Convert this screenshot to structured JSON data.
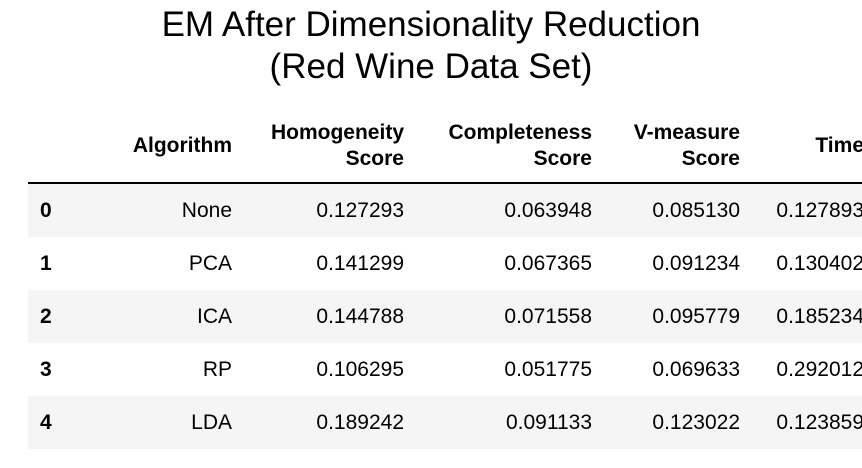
{
  "title": {
    "line1": "EM After Dimensionality Reduction",
    "line2": "(Red Wine Data Set)"
  },
  "table": {
    "columns": [
      {
        "lines": [
          "Algorithm"
        ]
      },
      {
        "lines": [
          "Homogeneity",
          "Score"
        ]
      },
      {
        "lines": [
          "Completeness",
          "Score"
        ]
      },
      {
        "lines": [
          "V-measure",
          "Score"
        ]
      },
      {
        "lines": [
          "Time"
        ]
      }
    ],
    "rows": [
      {
        "index": "0",
        "cells": [
          "None",
          "0.127293",
          "0.063948",
          "0.085130",
          "0.127893"
        ]
      },
      {
        "index": "1",
        "cells": [
          "PCA",
          "0.141299",
          "0.067365",
          "0.091234",
          "0.130402"
        ]
      },
      {
        "index": "2",
        "cells": [
          "ICA",
          "0.144788",
          "0.071558",
          "0.095779",
          "0.185234"
        ]
      },
      {
        "index": "3",
        "cells": [
          "RP",
          "0.106295",
          "0.051775",
          "0.069633",
          "0.292012"
        ]
      },
      {
        "index": "4",
        "cells": [
          "LDA",
          "0.189242",
          "0.091133",
          "0.123022",
          "0.123859"
        ]
      }
    ]
  },
  "colors": {
    "text": "#000000",
    "stripe": "#f5f5f5",
    "background": "#ffffff"
  }
}
